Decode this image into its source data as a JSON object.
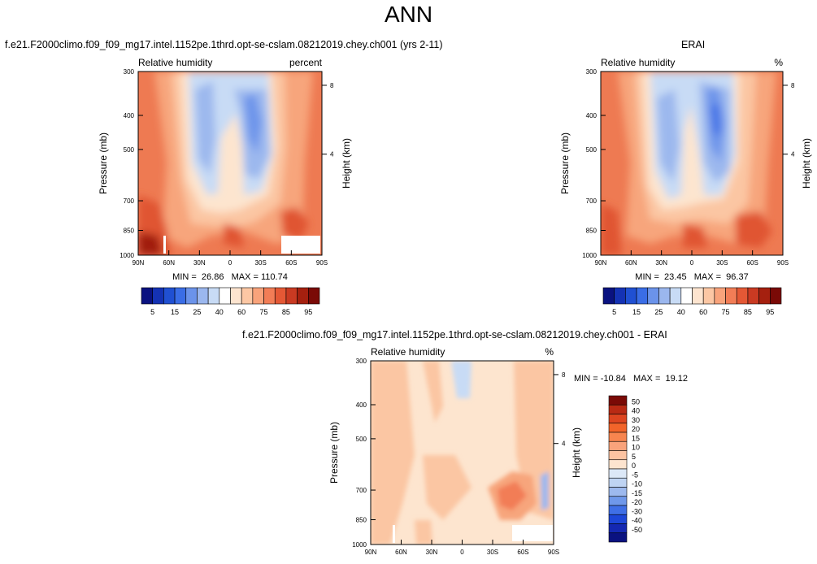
{
  "page_title": "ANN",
  "panels": {
    "test": {
      "case_title": "f.e21.F2000climo.f09_f09_mg17.intel.1152pe.1thrd.opt-se-cslam.08212019.chey.ch001 (yrs 2-11)",
      "left_label": "Relative humidity",
      "right_label": "percent",
      "stats": "MIN =  26.86   MAX = 110.74"
    },
    "obs": {
      "case_title": "ERAI",
      "left_label": "Relative humidity",
      "right_label": "%",
      "stats": "MIN =  23.45   MAX =  96.37"
    },
    "diff": {
      "case_title": "f.e21.F2000climo.f09_f09_mg17.intel.1152pe.1thrd.opt-se-cslam.08212019.chey.ch001 - ERAI",
      "left_label": "Relative humidity",
      "right_label": "%",
      "stats": "MIN = -10.84   MAX =  19.12"
    }
  },
  "axes": {
    "ylabel": "Pressure (mb)",
    "ylabel_right": "Height (km)",
    "pressure_ticks": [
      "300",
      "400",
      "500",
      "700",
      "850",
      "1000"
    ],
    "height_ticks": [
      "8",
      "4"
    ],
    "lat_ticks": [
      "90N",
      "60N",
      "30N",
      "0",
      "30S",
      "60S",
      "90S"
    ]
  },
  "colorbars": {
    "abs_labels": [
      "5",
      "15",
      "25",
      "40",
      "60",
      "75",
      "85",
      "95"
    ],
    "abs_colors": [
      "#0a1280",
      "#1432b4",
      "#2050d2",
      "#3a6de6",
      "#6b93ea",
      "#9bb7ee",
      "#c8dbf5",
      "#ffffff",
      "#fde4cf",
      "#fcc7a4",
      "#f9a37b",
      "#f27d56",
      "#e45835",
      "#c93a22",
      "#a5200f",
      "#7a0a06"
    ],
    "diff_labels": [
      "50",
      "40",
      "30",
      "20",
      "15",
      "10",
      "5",
      "0",
      "-5",
      "-10",
      "-15",
      "-20",
      "-30",
      "-40",
      "-50"
    ],
    "diff_colors": [
      "#7a0a06",
      "#b92a14",
      "#dd4520",
      "#f2642a",
      "#f7854f",
      "#f9a37b",
      "#fcc3a2",
      "#fde4cf",
      "#dce8f7",
      "#bfd4f3",
      "#9db9ee",
      "#6f98ea",
      "#3f6fe6",
      "#1d47d8",
      "#1428b2",
      "#0a1280"
    ]
  },
  "chart_data": [
    {
      "type": "heatmap",
      "title": "f.e21.F2000climo.f09_f09_mg17.intel.1152pe.1thrd.opt-se-cslam.08212019.chey.ch001 (yrs 2-11)",
      "variable": "Relative humidity",
      "units": "percent",
      "xlabel": "",
      "ylabel": "Pressure (mb)",
      "x_range": [
        90,
        -90
      ],
      "y_range": [
        300,
        1000
      ],
      "levels": [
        5,
        10,
        15,
        20,
        25,
        30,
        40,
        50,
        60,
        65,
        70,
        75,
        80,
        85,
        90,
        95
      ],
      "min": 26.86,
      "max": 110.74
    },
    {
      "type": "heatmap",
      "title": "ERAI",
      "variable": "Relative humidity",
      "units": "%",
      "xlabel": "",
      "ylabel": "Pressure (mb)",
      "x_range": [
        90,
        -90
      ],
      "y_range": [
        300,
        1000
      ],
      "levels": [
        5,
        10,
        15,
        20,
        25,
        30,
        40,
        50,
        60,
        65,
        70,
        75,
        80,
        85,
        90,
        95
      ],
      "min": 23.45,
      "max": 96.37
    },
    {
      "type": "heatmap",
      "title": "f.e21.F2000climo.f09_f09_mg17.intel.1152pe.1thrd.opt-se-cslam.08212019.chey.ch001 - ERAI",
      "variable": "Relative humidity",
      "units": "%",
      "xlabel": "",
      "ylabel": "Pressure (mb)",
      "x_range": [
        90,
        -90
      ],
      "y_range": [
        300,
        1000
      ],
      "levels": [
        -50,
        -40,
        -30,
        -20,
        -15,
        -10,
        -5,
        0,
        5,
        10,
        15,
        20,
        30,
        40,
        50
      ],
      "min": -10.84,
      "max": 19.12
    }
  ]
}
